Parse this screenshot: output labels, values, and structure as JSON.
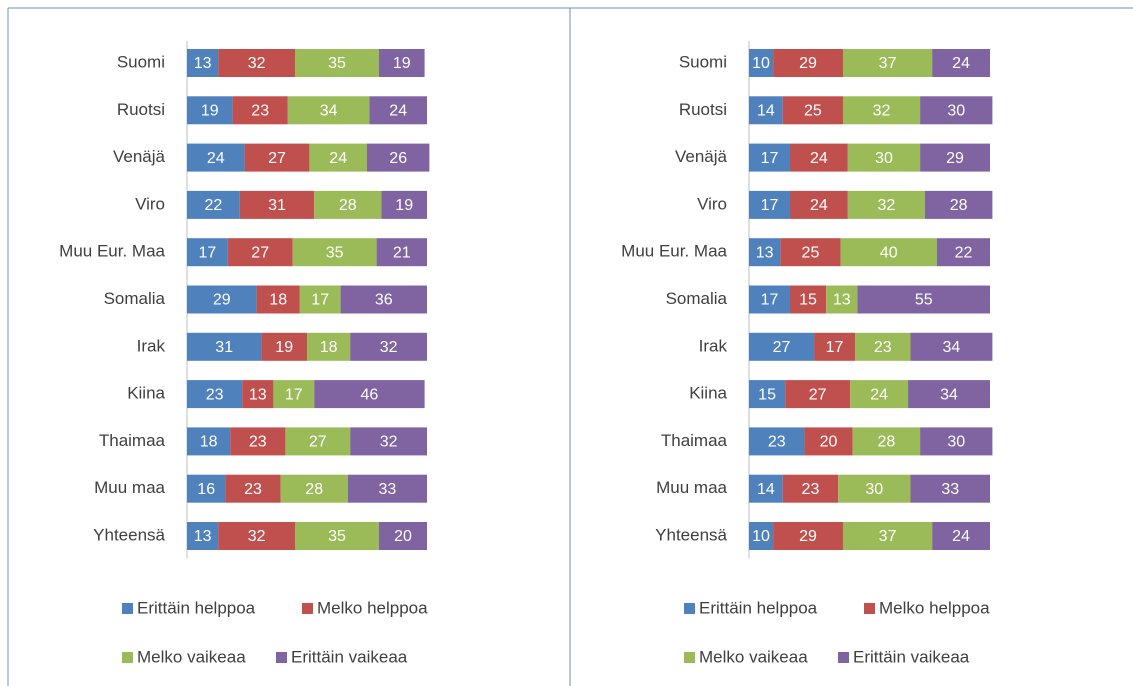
{
  "chart_data": [
    {
      "type": "bar",
      "stacked": true,
      "orientation": "horizontal",
      "xlim": [
        0,
        100
      ],
      "categories": [
        "Suomi",
        "Ruotsi",
        "Venäjä",
        "Viro",
        "Muu Eur. Maa",
        "Somalia",
        "Irak",
        "Kiina",
        "Thaimaa",
        "Muu maa",
        "Yhteensä"
      ],
      "series": [
        {
          "name": "Erittäin helppoa",
          "color": "#4f81bd",
          "values": [
            13,
            19,
            24,
            22,
            17,
            29,
            31,
            23,
            18,
            16,
            13
          ]
        },
        {
          "name": "Melko helppoa",
          "color": "#c0504d",
          "values": [
            32,
            23,
            27,
            31,
            27,
            18,
            19,
            13,
            23,
            23,
            32
          ]
        },
        {
          "name": "Melko vaikeaa",
          "color": "#9bbb59",
          "values": [
            35,
            34,
            24,
            28,
            35,
            17,
            18,
            17,
            27,
            28,
            35
          ]
        },
        {
          "name": "Erittäin vaikeaa",
          "color": "#8064a2",
          "values": [
            19,
            24,
            26,
            19,
            21,
            36,
            32,
            46,
            32,
            33,
            20
          ]
        }
      ]
    },
    {
      "type": "bar",
      "stacked": true,
      "orientation": "horizontal",
      "xlim": [
        0,
        100
      ],
      "categories": [
        "Suomi",
        "Ruotsi",
        "Venäjä",
        "Viro",
        "Muu Eur. Maa",
        "Somalia",
        "Irak",
        "Kiina",
        "Thaimaa",
        "Muu maa",
        "Yhteensä"
      ],
      "series": [
        {
          "name": "Erittäin helppoa",
          "color": "#4f81bd",
          "values": [
            10,
            14,
            17,
            17,
            13,
            17,
            27,
            15,
            23,
            14,
            10
          ]
        },
        {
          "name": "Melko helppoa",
          "color": "#c0504d",
          "values": [
            29,
            25,
            24,
            24,
            25,
            15,
            17,
            27,
            20,
            23,
            29
          ]
        },
        {
          "name": "Melko vaikeaa",
          "color": "#9bbb59",
          "values": [
            37,
            32,
            30,
            32,
            40,
            13,
            23,
            24,
            28,
            30,
            37
          ]
        },
        {
          "name": "Erittäin vaikeaa",
          "color": "#8064a2",
          "values": [
            24,
            30,
            29,
            28,
            22,
            55,
            34,
            34,
            30,
            33,
            24
          ]
        }
      ]
    }
  ]
}
